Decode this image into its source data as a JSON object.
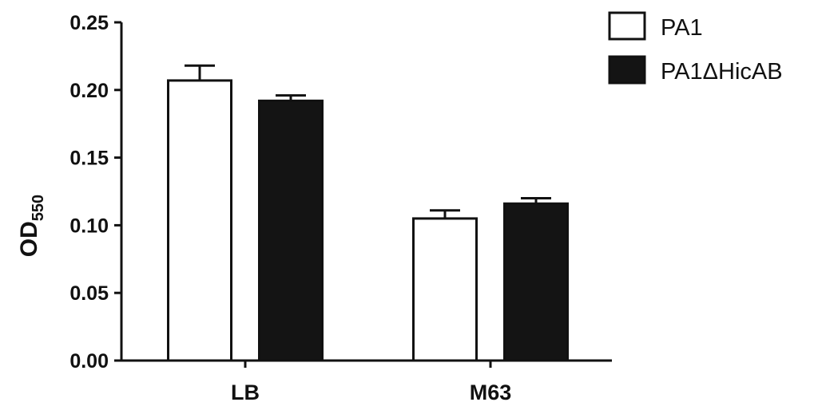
{
  "chart_data": {
    "type": "bar",
    "title": "",
    "xlabel": "",
    "ylabel": "OD",
    "ylabel_subscript": "550",
    "ylim": [
      0,
      0.25
    ],
    "yticks": [
      "0.00",
      "0.05",
      "0.10",
      "0.15",
      "0.20",
      "0.25"
    ],
    "ytick_values": [
      0,
      0.05,
      0.1,
      0.15,
      0.2,
      0.25
    ],
    "categories": [
      "LB",
      "M63"
    ],
    "series": [
      {
        "name": "PA1",
        "values": [
          0.207,
          0.105
        ],
        "errors": [
          0.011,
          0.006
        ],
        "fill": "#ffffff"
      },
      {
        "name": "PA1ΔHicAB",
        "values": [
          0.192,
          0.116
        ],
        "errors": [
          0.004,
          0.004
        ],
        "fill": "#141414"
      }
    ],
    "grid": false,
    "legend_position": "top-right",
    "colors": {
      "axis": "#111111",
      "outline": "#111111"
    }
  }
}
